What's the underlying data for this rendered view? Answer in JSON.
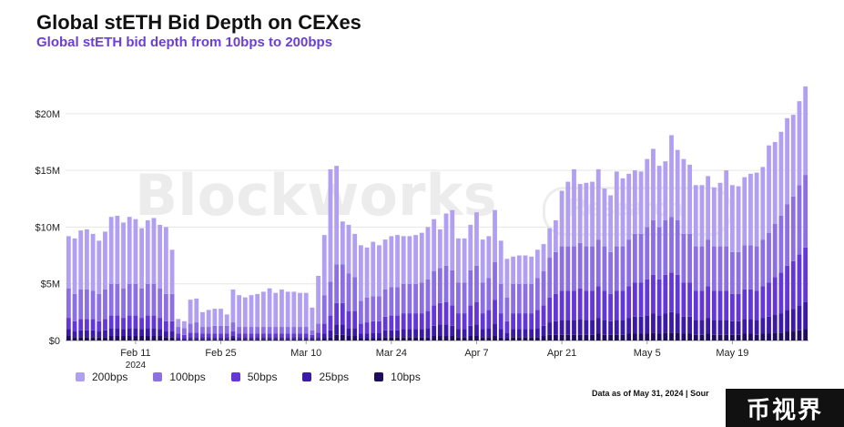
{
  "header": {
    "title": "Global stETH Bid Depth on CEXes",
    "subtitle": "Global stETH bid depth from 10bps to 200bps"
  },
  "watermark": {
    "text": "Blockworks",
    "badge": "Research"
  },
  "footer": {
    "source": "Data as of May 31, 2024 | Sour",
    "badge_text": "币视界"
  },
  "colors": {
    "200bps": "#b1a0f2",
    "100bps": "#8b6fe3",
    "50bps": "#6437d8",
    "25bps": "#3a1aa6",
    "10bps": "#1e0c5c"
  },
  "chart_data": {
    "type": "bar",
    "stacked": true,
    "title": "Global stETH Bid Depth on CEXes",
    "subtitle": "Global stETH bid depth from 10bps to 200bps",
    "xlabel": "",
    "ylabel": "",
    "ylim": [
      0,
      24
    ],
    "y_unit": "$M",
    "y_ticks": [
      "$0",
      "$5M",
      "$10M",
      "$15M",
      "$20M"
    ],
    "y_tick_values": [
      0,
      5,
      10,
      15,
      20
    ],
    "x_ticks": [
      "Feb 11",
      "Feb 25",
      "Mar 10",
      "Mar 24",
      "Apr 7",
      "Apr 21",
      "May 5",
      "May 19"
    ],
    "x_year_label": "2024",
    "grid": true,
    "legend_position": "bottom",
    "legend": [
      "200bps",
      "100bps",
      "50bps",
      "25bps",
      "10bps"
    ],
    "categories": [
      "2024-01-31",
      "2024-02-01",
      "2024-02-02",
      "2024-02-03",
      "2024-02-04",
      "2024-02-05",
      "2024-02-06",
      "2024-02-07",
      "2024-02-08",
      "2024-02-09",
      "2024-02-10",
      "2024-02-11",
      "2024-02-12",
      "2024-02-13",
      "2024-02-14",
      "2024-02-15",
      "2024-02-16",
      "2024-02-17",
      "2024-02-18",
      "2024-02-19",
      "2024-02-20",
      "2024-02-21",
      "2024-02-22",
      "2024-02-23",
      "2024-02-24",
      "2024-02-25",
      "2024-02-26",
      "2024-02-27",
      "2024-02-28",
      "2024-02-29",
      "2024-03-01",
      "2024-03-02",
      "2024-03-03",
      "2024-03-04",
      "2024-03-05",
      "2024-03-06",
      "2024-03-07",
      "2024-03-08",
      "2024-03-09",
      "2024-03-10",
      "2024-03-11",
      "2024-03-12",
      "2024-03-13",
      "2024-03-14",
      "2024-03-15",
      "2024-03-16",
      "2024-03-17",
      "2024-03-18",
      "2024-03-19",
      "2024-03-20",
      "2024-03-21",
      "2024-03-22",
      "2024-03-23",
      "2024-03-24",
      "2024-03-25",
      "2024-03-26",
      "2024-03-27",
      "2024-03-28",
      "2024-03-29",
      "2024-03-30",
      "2024-03-31",
      "2024-04-01",
      "2024-04-02",
      "2024-04-03",
      "2024-04-04",
      "2024-04-05",
      "2024-04-06",
      "2024-04-07",
      "2024-04-08",
      "2024-04-09",
      "2024-04-10",
      "2024-04-11",
      "2024-04-12",
      "2024-04-13",
      "2024-04-14",
      "2024-04-15",
      "2024-04-16",
      "2024-04-17",
      "2024-04-18",
      "2024-04-19",
      "2024-04-20",
      "2024-04-21",
      "2024-04-22",
      "2024-04-23",
      "2024-04-24",
      "2024-04-25",
      "2024-04-26",
      "2024-04-27",
      "2024-04-28",
      "2024-04-29",
      "2024-04-30",
      "2024-05-01",
      "2024-05-02",
      "2024-05-03",
      "2024-05-04",
      "2024-05-05",
      "2024-05-06",
      "2024-05-07",
      "2024-05-08",
      "2024-05-09",
      "2024-05-10",
      "2024-05-11",
      "2024-05-12",
      "2024-05-13",
      "2024-05-14",
      "2024-05-15",
      "2024-05-16",
      "2024-05-17",
      "2024-05-18",
      "2024-05-19",
      "2024-05-20",
      "2024-05-21",
      "2024-05-22",
      "2024-05-23",
      "2024-05-24",
      "2024-05-25",
      "2024-05-26",
      "2024-05-27",
      "2024-05-28",
      "2024-05-29",
      "2024-05-30",
      "2024-05-31"
    ],
    "series": [
      {
        "name": "10bps",
        "values": [
          0.4,
          0.3,
          0.3,
          0.3,
          0.3,
          0.3,
          0.3,
          0.4,
          0.4,
          0.4,
          0.4,
          0.4,
          0.4,
          0.4,
          0.4,
          0.4,
          0.3,
          0.3,
          0.1,
          0.1,
          0.1,
          0.1,
          0.1,
          0.1,
          0.1,
          0.1,
          0.1,
          0.2,
          0.1,
          0.1,
          0.1,
          0.1,
          0.1,
          0.1,
          0.1,
          0.1,
          0.1,
          0.1,
          0.1,
          0.1,
          0.1,
          0.1,
          0.2,
          0.3,
          0.5,
          0.5,
          0.4,
          0.4,
          0.2,
          0.2,
          0.2,
          0.2,
          0.3,
          0.3,
          0.3,
          0.3,
          0.3,
          0.3,
          0.3,
          0.3,
          0.4,
          0.4,
          0.4,
          0.4,
          0.3,
          0.3,
          0.4,
          0.4,
          0.3,
          0.3,
          0.4,
          0.3,
          0.2,
          0.3,
          0.3,
          0.3,
          0.3,
          0.3,
          0.4,
          0.5,
          0.5,
          0.5,
          0.5,
          0.5,
          0.5,
          0.5,
          0.5,
          0.6,
          0.5,
          0.5,
          0.5,
          0.5,
          0.6,
          0.6,
          0.6,
          0.6,
          0.7,
          0.6,
          0.7,
          0.7,
          0.7,
          0.6,
          0.6,
          0.5,
          0.5,
          0.6,
          0.5,
          0.5,
          0.5,
          0.5,
          0.5,
          0.6,
          0.6,
          0.5,
          0.6,
          0.6,
          0.7,
          0.7,
          0.8,
          0.8,
          0.9,
          1.0
        ]
      },
      {
        "name": "25bps",
        "values": [
          0.6,
          0.5,
          0.6,
          0.6,
          0.6,
          0.5,
          0.6,
          0.7,
          0.7,
          0.6,
          0.7,
          0.7,
          0.6,
          0.7,
          0.7,
          0.6,
          0.5,
          0.5,
          0.2,
          0.1,
          0.2,
          0.2,
          0.2,
          0.2,
          0.2,
          0.2,
          0.2,
          0.2,
          0.2,
          0.2,
          0.2,
          0.2,
          0.2,
          0.2,
          0.2,
          0.2,
          0.2,
          0.2,
          0.2,
          0.2,
          0.2,
          0.2,
          0.4,
          0.6,
          0.9,
          0.9,
          0.7,
          0.7,
          0.4,
          0.4,
          0.5,
          0.5,
          0.6,
          0.6,
          0.6,
          0.7,
          0.7,
          0.7,
          0.7,
          0.8,
          0.9,
          1.0,
          1.0,
          0.9,
          0.7,
          0.7,
          0.9,
          1.0,
          0.7,
          0.8,
          1.1,
          0.7,
          0.5,
          0.7,
          0.7,
          0.7,
          0.7,
          0.8,
          0.9,
          1.1,
          1.2,
          1.3,
          1.3,
          1.3,
          1.4,
          1.3,
          1.3,
          1.4,
          1.3,
          1.2,
          1.3,
          1.3,
          1.4,
          1.5,
          1.5,
          1.6,
          1.7,
          1.6,
          1.7,
          1.8,
          1.7,
          1.5,
          1.5,
          1.3,
          1.3,
          1.4,
          1.3,
          1.3,
          1.3,
          1.2,
          1.2,
          1.3,
          1.3,
          1.3,
          1.4,
          1.5,
          1.6,
          1.7,
          1.9,
          2.0,
          2.2,
          2.4
        ]
      },
      {
        "name": "50bps",
        "values": [
          1.0,
          0.9,
          1.0,
          1.0,
          1.0,
          0.9,
          1.0,
          1.1,
          1.1,
          1.0,
          1.1,
          1.1,
          1.0,
          1.1,
          1.1,
          1.0,
          0.9,
          0.9,
          0.3,
          0.3,
          0.4,
          0.4,
          0.3,
          0.3,
          0.3,
          0.3,
          0.3,
          0.4,
          0.3,
          0.3,
          0.3,
          0.3,
          0.3,
          0.3,
          0.3,
          0.3,
          0.3,
          0.3,
          0.3,
          0.3,
          0.2,
          0.4,
          0.9,
          1.3,
          1.9,
          1.9,
          1.5,
          1.5,
          0.9,
          1.0,
          1.0,
          1.0,
          1.2,
          1.3,
          1.3,
          1.4,
          1.4,
          1.4,
          1.4,
          1.5,
          1.8,
          1.9,
          2.0,
          1.8,
          1.4,
          1.4,
          1.8,
          2.0,
          1.4,
          1.6,
          2.1,
          1.4,
          1.0,
          1.4,
          1.4,
          1.4,
          1.4,
          1.6,
          1.8,
          2.2,
          2.4,
          2.6,
          2.6,
          2.6,
          2.7,
          2.6,
          2.6,
          2.8,
          2.6,
          2.4,
          2.6,
          2.6,
          2.8,
          3.0,
          3.0,
          3.2,
          3.4,
          3.2,
          3.4,
          3.5,
          3.4,
          3.0,
          3.0,
          2.6,
          2.6,
          2.8,
          2.6,
          2.6,
          2.6,
          2.4,
          2.4,
          2.6,
          2.6,
          2.6,
          2.8,
          3.0,
          3.3,
          3.6,
          3.9,
          4.2,
          4.5,
          4.8
        ]
      },
      {
        "name": "100bps",
        "values": [
          2.6,
          2.4,
          2.6,
          2.6,
          2.5,
          2.4,
          2.6,
          2.8,
          2.8,
          2.6,
          2.8,
          2.8,
          2.6,
          2.8,
          2.8,
          2.6,
          2.4,
          2.4,
          0.6,
          0.6,
          0.8,
          0.9,
          0.6,
          0.6,
          0.7,
          0.7,
          0.7,
          0.8,
          0.6,
          0.6,
          0.6,
          0.6,
          0.6,
          0.6,
          0.6,
          0.6,
          0.6,
          0.6,
          0.6,
          0.6,
          0.4,
          0.8,
          2.5,
          3.0,
          3.4,
          3.4,
          3.3,
          3.0,
          2.0,
          2.2,
          2.2,
          2.2,
          2.4,
          2.5,
          2.5,
          2.6,
          2.6,
          2.6,
          2.7,
          2.8,
          3.0,
          3.1,
          3.2,
          3.1,
          2.7,
          2.7,
          3.1,
          3.2,
          2.7,
          2.8,
          3.3,
          2.6,
          2.1,
          2.6,
          2.6,
          2.6,
          2.6,
          2.8,
          3.0,
          3.5,
          3.7,
          3.9,
          3.9,
          3.9,
          4.0,
          3.9,
          3.9,
          4.1,
          3.9,
          3.7,
          3.9,
          3.9,
          4.1,
          4.3,
          4.3,
          4.6,
          4.8,
          4.6,
          4.8,
          4.9,
          4.8,
          4.3,
          4.3,
          3.9,
          3.9,
          4.1,
          3.9,
          3.9,
          3.9,
          3.7,
          3.7,
          3.9,
          3.9,
          3.9,
          4.1,
          4.4,
          4.7,
          5.0,
          5.4,
          5.7,
          6.1,
          6.4
        ]
      },
      {
        "name": "200bps",
        "values": [
          4.6,
          4.9,
          5.2,
          5.3,
          5.0,
          4.7,
          5.1,
          5.9,
          6.0,
          5.8,
          5.9,
          5.7,
          5.3,
          5.6,
          5.8,
          5.6,
          5.9,
          3.9,
          0.7,
          0.6,
          2.1,
          2.1,
          1.3,
          1.5,
          1.5,
          1.5,
          1.0,
          2.9,
          2.8,
          2.6,
          2.8,
          2.9,
          3.1,
          3.4,
          3.0,
          3.3,
          3.1,
          3.1,
          3.0,
          3.0,
          2.0,
          4.2,
          5.3,
          9.9,
          8.7,
          3.8,
          4.3,
          3.8,
          4.9,
          4.4,
          4.8,
          4.5,
          4.4,
          4.5,
          4.6,
          4.2,
          4.2,
          4.3,
          4.4,
          4.6,
          4.6,
          3.4,
          4.6,
          5.3,
          3.9,
          3.9,
          4.0,
          4.7,
          3.8,
          3.7,
          4.6,
          3.8,
          3.4,
          2.4,
          2.5,
          2.5,
          2.4,
          2.5,
          2.4,
          2.6,
          2.8,
          4.9,
          5.7,
          6.8,
          5.2,
          5.6,
          5.7,
          6.2,
          5.1,
          5.0,
          6.6,
          6.0,
          5.8,
          5.6,
          5.5,
          6.0,
          6.3,
          5.4,
          5.2,
          7.2,
          6.2,
          6.6,
          6.1,
          5.4,
          5.4,
          5.6,
          5.2,
          5.6,
          6.7,
          5.9,
          5.8,
          6.0,
          6.3,
          6.5,
          6.4,
          7.7,
          7.2,
          7.4,
          7.6,
          7.2,
          7.4,
          7.8
        ]
      }
    ]
  }
}
